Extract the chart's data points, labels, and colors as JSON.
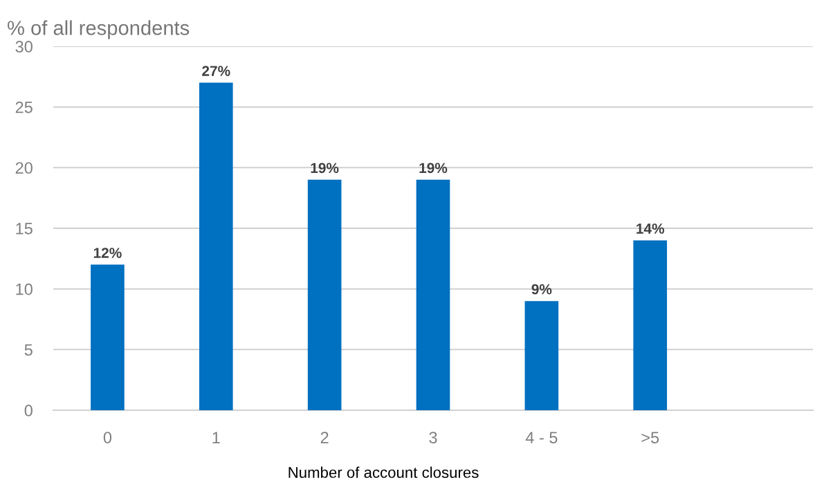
{
  "chart_data": {
    "type": "bar",
    "ylabel": "% of all respondents",
    "xlabel": "Number of account closures",
    "categories": [
      "0",
      "1",
      "2",
      "3",
      "4 - 5",
      ">5",
      null
    ],
    "values": [
      12,
      27,
      19,
      19,
      9,
      14,
      null
    ],
    "value_labels": [
      "12%",
      "27%",
      "19%",
      "19%",
      "9%",
      "14%",
      null
    ],
    "color": "#0070c0",
    "ylim": [
      0,
      30
    ],
    "yticks": [
      0,
      5,
      10,
      15,
      20,
      25,
      30
    ],
    "grid": "y",
    "legend": false
  }
}
